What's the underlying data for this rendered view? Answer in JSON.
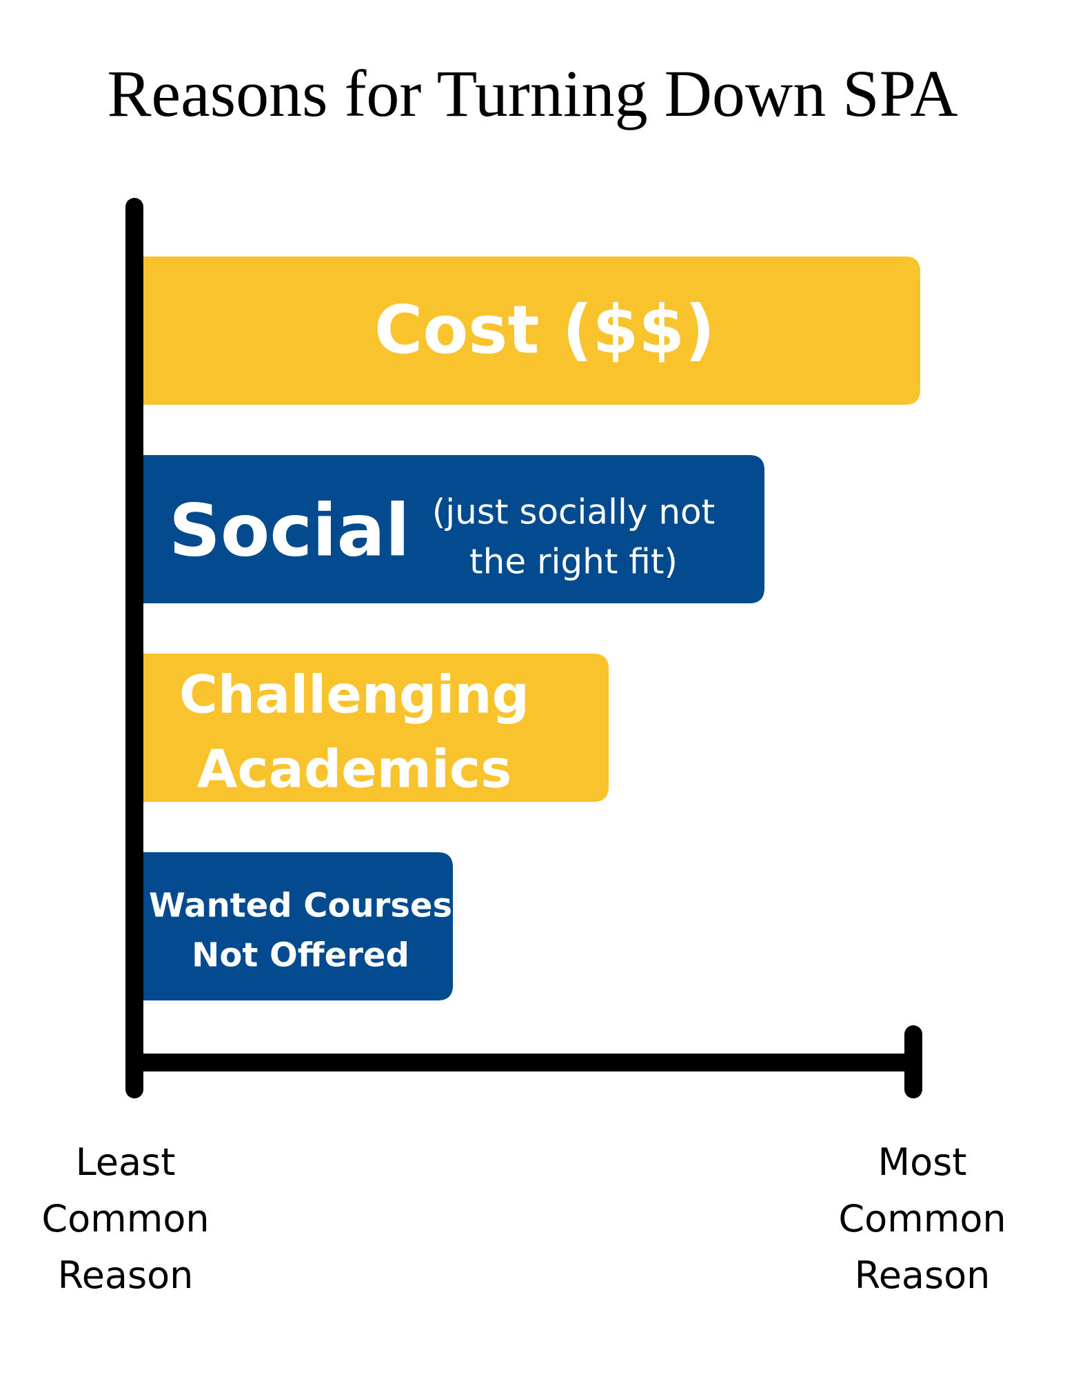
{
  "chart_data": {
    "type": "bar",
    "orientation": "horizontal",
    "title": "Reasons for Turning Down SPA",
    "xlabel_min": [
      "Least",
      "Common",
      "Reason"
    ],
    "xlabel_max": [
      "Most",
      "Common",
      "Reason"
    ],
    "xlim": [
      0,
      100
    ],
    "grid": false,
    "categories": [
      {
        "label": "Cost ($$)",
        "note": ""
      },
      {
        "label": "Social",
        "note": "(just socially not the right fit)"
      },
      {
        "label": "Challenging Academics",
        "note": ""
      },
      {
        "label": "Wanted Courses Not Offered",
        "note": ""
      }
    ],
    "values": [
      100,
      80,
      60,
      40
    ],
    "colors": [
      "#F8C32D",
      "#034A8F",
      "#F8C32D",
      "#034A8F"
    ],
    "text_color": "#FFFFFF",
    "axis_color": "#000000"
  }
}
